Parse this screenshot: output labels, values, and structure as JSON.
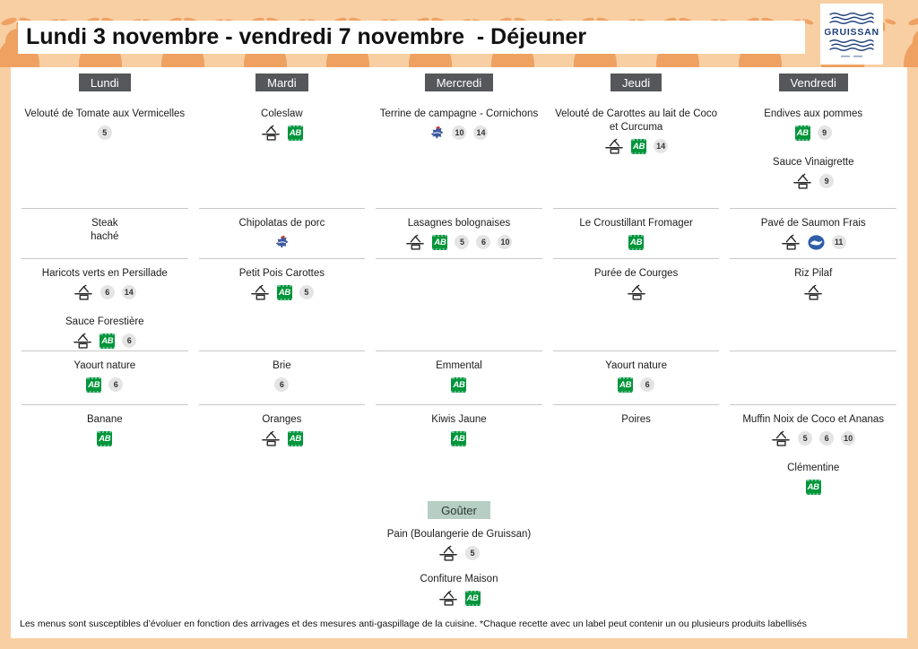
{
  "header": {
    "title": "Lundi 3 novembre - vendredi 7 novembre  - Déjeuner",
    "logo_text": "GRUISSAN"
  },
  "days": [
    {
      "label": "Lundi",
      "sections": [
        {
          "dishes": [
            {
              "name": "Velouté de Tomate aux Vermicelles",
              "icons": [
                {
                  "type": "allergen",
                  "value": "5"
                }
              ]
            }
          ]
        },
        {
          "dishes": [
            {
              "name": "Steak\nhaché",
              "icons": []
            }
          ]
        },
        {
          "dishes": [
            {
              "name": "Haricots verts en Persillade",
              "icons": [
                {
                  "type": "fait-maison"
                },
                {
                  "type": "allergen",
                  "value": "6"
                },
                {
                  "type": "allergen",
                  "value": "14"
                }
              ]
            },
            {
              "name": "Sauce Forestière",
              "icons": [
                {
                  "type": "fait-maison"
                },
                {
                  "type": "ab"
                },
                {
                  "type": "allergen",
                  "value": "6"
                }
              ]
            }
          ]
        },
        {
          "dishes": [
            {
              "name": "Yaourt nature",
              "icons": [
                {
                  "type": "ab"
                },
                {
                  "type": "allergen",
                  "value": "6"
                }
              ]
            }
          ]
        },
        {
          "dishes": [
            {
              "name": "Banane",
              "icons": [
                {
                  "type": "ab"
                }
              ]
            }
          ]
        }
      ]
    },
    {
      "label": "Mardi",
      "sections": [
        {
          "dishes": [
            {
              "name": "Coleslaw",
              "icons": [
                {
                  "type": "fait-maison"
                },
                {
                  "type": "ab"
                }
              ]
            }
          ]
        },
        {
          "dishes": [
            {
              "name": "Chipolatas de porc",
              "icons": [
                {
                  "type": "vpf"
                }
              ]
            }
          ]
        },
        {
          "dishes": [
            {
              "name": "Petit Pois Carottes",
              "icons": [
                {
                  "type": "fait-maison"
                },
                {
                  "type": "ab"
                },
                {
                  "type": "allergen",
                  "value": "5"
                }
              ]
            }
          ]
        },
        {
          "dishes": [
            {
              "name": "Brie",
              "icons": [
                {
                  "type": "allergen",
                  "value": "6"
                }
              ]
            }
          ]
        },
        {
          "dishes": [
            {
              "name": "Oranges",
              "icons": [
                {
                  "type": "fait-maison"
                },
                {
                  "type": "ab"
                }
              ]
            }
          ]
        }
      ]
    },
    {
      "label": "Mercredi",
      "sections": [
        {
          "dishes": [
            {
              "name": "Terrine de campagne - Cornichons",
              "icons": [
                {
                  "type": "vpf"
                },
                {
                  "type": "allergen",
                  "value": "10"
                },
                {
                  "type": "allergen",
                  "value": "14"
                }
              ]
            }
          ]
        },
        {
          "dishes": [
            {
              "name": "Lasagnes bolognaises",
              "icons": [
                {
                  "type": "fait-maison"
                },
                {
                  "type": "ab"
                },
                {
                  "type": "allergen",
                  "value": "5"
                },
                {
                  "type": "allergen",
                  "value": "6"
                },
                {
                  "type": "allergen",
                  "value": "10"
                }
              ]
            }
          ]
        },
        {
          "dishes": []
        },
        {
          "dishes": [
            {
              "name": "Emmental",
              "icons": [
                {
                  "type": "ab"
                }
              ]
            }
          ]
        },
        {
          "dishes": [
            {
              "name": "Kiwis Jaune",
              "icons": [
                {
                  "type": "ab"
                }
              ]
            }
          ]
        }
      ]
    },
    {
      "label": "Jeudi",
      "sections": [
        {
          "dishes": [
            {
              "name": "Velouté de Carottes au lait de Coco et Curcuma",
              "icons": [
                {
                  "type": "fait-maison"
                },
                {
                  "type": "ab"
                },
                {
                  "type": "allergen",
                  "value": "14"
                }
              ]
            }
          ]
        },
        {
          "dishes": [
            {
              "name": "Le Croustillant Fromager",
              "icons": [
                {
                  "type": "ab"
                }
              ]
            }
          ]
        },
        {
          "dishes": [
            {
              "name": "Purée de Courges",
              "icons": [
                {
                  "type": "fait-maison"
                }
              ]
            }
          ]
        },
        {
          "dishes": [
            {
              "name": "Yaourt nature",
              "icons": [
                {
                  "type": "ab"
                },
                {
                  "type": "allergen",
                  "value": "6"
                }
              ]
            }
          ]
        },
        {
          "dishes": [
            {
              "name": "Poires",
              "icons": []
            }
          ]
        }
      ]
    },
    {
      "label": "Vendredi",
      "sections": [
        {
          "dishes": [
            {
              "name": "Endives aux pommes",
              "icons": [
                {
                  "type": "ab"
                },
                {
                  "type": "allergen",
                  "value": "9"
                }
              ]
            },
            {
              "name": "Sauce Vinaigrette",
              "icons": [
                {
                  "type": "fait-maison"
                },
                {
                  "type": "allergen",
                  "value": "9"
                }
              ]
            }
          ]
        },
        {
          "dishes": [
            {
              "name": "Pavé de Saumon Frais",
              "icons": [
                {
                  "type": "fait-maison"
                },
                {
                  "type": "msc"
                },
                {
                  "type": "allergen",
                  "value": "11"
                }
              ]
            }
          ]
        },
        {
          "dishes": [
            {
              "name": "Riz Pilaf",
              "icons": [
                {
                  "type": "fait-maison"
                }
              ]
            }
          ]
        },
        {
          "dishes": []
        },
        {
          "dishes": [
            {
              "name": "Muffin Noix de Coco et Ananas",
              "icons": [
                {
                  "type": "fait-maison"
                },
                {
                  "type": "allergen",
                  "value": "5"
                },
                {
                  "type": "allergen",
                  "value": "6"
                },
                {
                  "type": "allergen",
                  "value": "10"
                }
              ]
            },
            {
              "name": "Clémentine",
              "icons": [
                {
                  "type": "ab"
                }
              ]
            }
          ]
        }
      ]
    }
  ],
  "gouter": {
    "label": "Goûter",
    "dishes": [
      {
        "name": "Pain (Boulangerie de Gruissan)",
        "icons": [
          {
            "type": "fait-maison"
          },
          {
            "type": "allergen",
            "value": "5"
          }
        ]
      },
      {
        "name": "Confiture Maison",
        "icons": [
          {
            "type": "fait-maison"
          },
          {
            "type": "ab"
          }
        ]
      }
    ]
  },
  "footer": {
    "disclaimer": "Les menus sont susceptibles d’évoluer en fonction des arrivages et des mesures anti-gaspillage de la cuisine. *Chaque recette avec un label peut contenir un ou plusieurs produits labellisés"
  },
  "icon_legend": {
    "fait-maison": "fait-maison-icon",
    "ab": "ab-organic-icon",
    "vpf": "french-pork-icon",
    "msc": "msc-fish-icon",
    "allergen": "allergen-badge"
  },
  "colors": {
    "header_bg": "#f8cfa3",
    "pear": "#efa162",
    "day_badge_bg": "#56575b",
    "gouter_badge_bg": "#b6cec4",
    "divider": "#c8c8c8",
    "allergen_bg": "#e4e4e4",
    "ab_green": "#00953b",
    "msc_blue": "#2f5ea8"
  }
}
